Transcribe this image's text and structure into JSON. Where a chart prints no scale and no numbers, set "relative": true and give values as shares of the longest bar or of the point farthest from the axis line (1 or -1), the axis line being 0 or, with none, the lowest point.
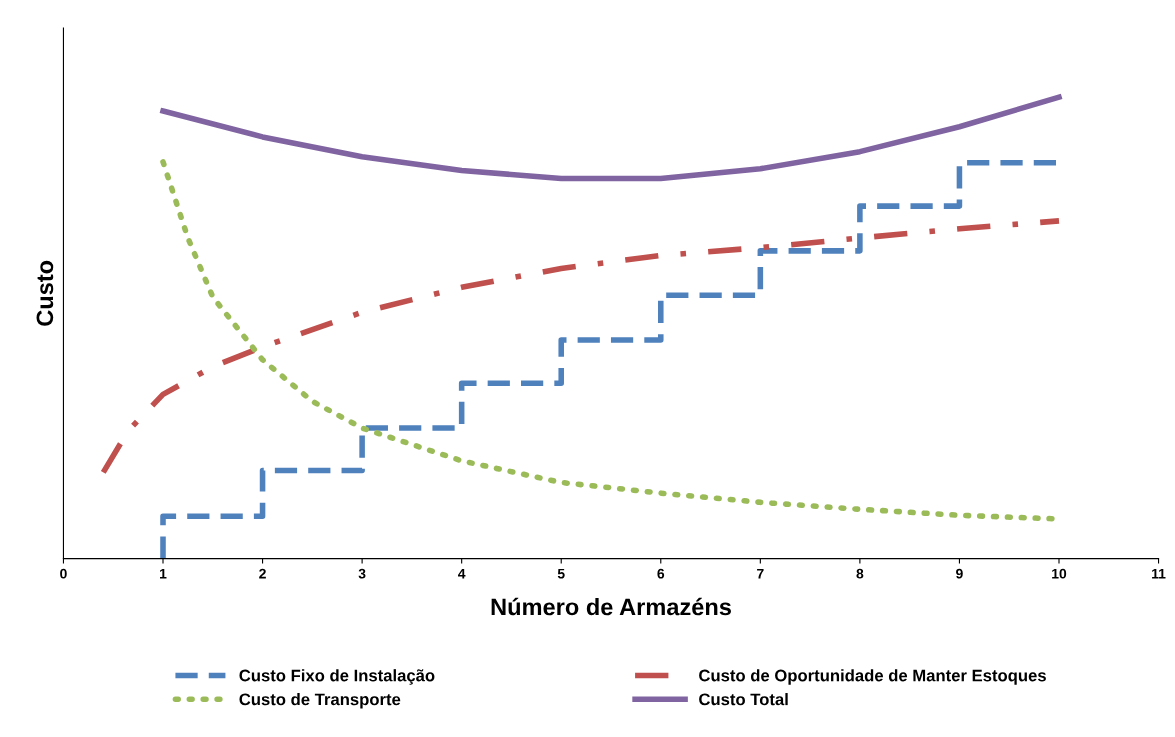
{
  "chart_data": {
    "type": "line",
    "xlabel": "Número de Armazéns",
    "ylabel": "Custo",
    "relative": true,
    "xlim": [
      0,
      11
    ],
    "xticks": [
      0,
      1,
      2,
      3,
      4,
      5,
      6,
      7,
      8,
      9,
      10,
      11
    ],
    "tick_labels": "x",
    "grid": false,
    "legend": "bottom",
    "series": [
      {
        "name": "Custo Fixo de Instalação",
        "type": "step",
        "line_style": "dashed",
        "color": "#4f81bd",
        "x": [
          1,
          1,
          2,
          3,
          4,
          5,
          6,
          7,
          8,
          9,
          10
        ],
        "values": [
          0,
          0.092,
          0.191,
          0.283,
          0.38,
          0.474,
          0.571,
          0.667,
          0.764,
          0.858,
          0.858
        ]
      },
      {
        "name": "Custo de Oportunidade de Manter Estoques",
        "line_style": "dashdot",
        "color": "#c0504d",
        "x": [
          0.4,
          0.65,
          1,
          1.5,
          2,
          3,
          4,
          5,
          6,
          7,
          8,
          9,
          10
        ],
        "values": [
          0.187,
          0.277,
          0.356,
          0.416,
          0.459,
          0.534,
          0.588,
          0.629,
          0.657,
          0.674,
          0.695,
          0.715,
          0.732
        ]
      },
      {
        "name": "Custo de Transporte",
        "line_style": "dotted",
        "color": "#9bbb59",
        "x": [
          1,
          1.25,
          1.5,
          2,
          2.5,
          3,
          4,
          5,
          6,
          7,
          8,
          9,
          10
        ],
        "values": [
          0.86,
          0.695,
          0.567,
          0.431,
          0.341,
          0.283,
          0.212,
          0.165,
          0.142,
          0.122,
          0.107,
          0.094,
          0.086
        ]
      },
      {
        "name": "Custo Total",
        "line_style": "solid",
        "color": "#8064a2",
        "x": [
          1,
          2,
          3,
          4,
          5,
          6,
          7,
          8,
          9,
          10
        ],
        "values": [
          0.97,
          0.914,
          0.871,
          0.841,
          0.824,
          0.824,
          0.845,
          0.882,
          0.936,
          1.0
        ]
      }
    ]
  }
}
